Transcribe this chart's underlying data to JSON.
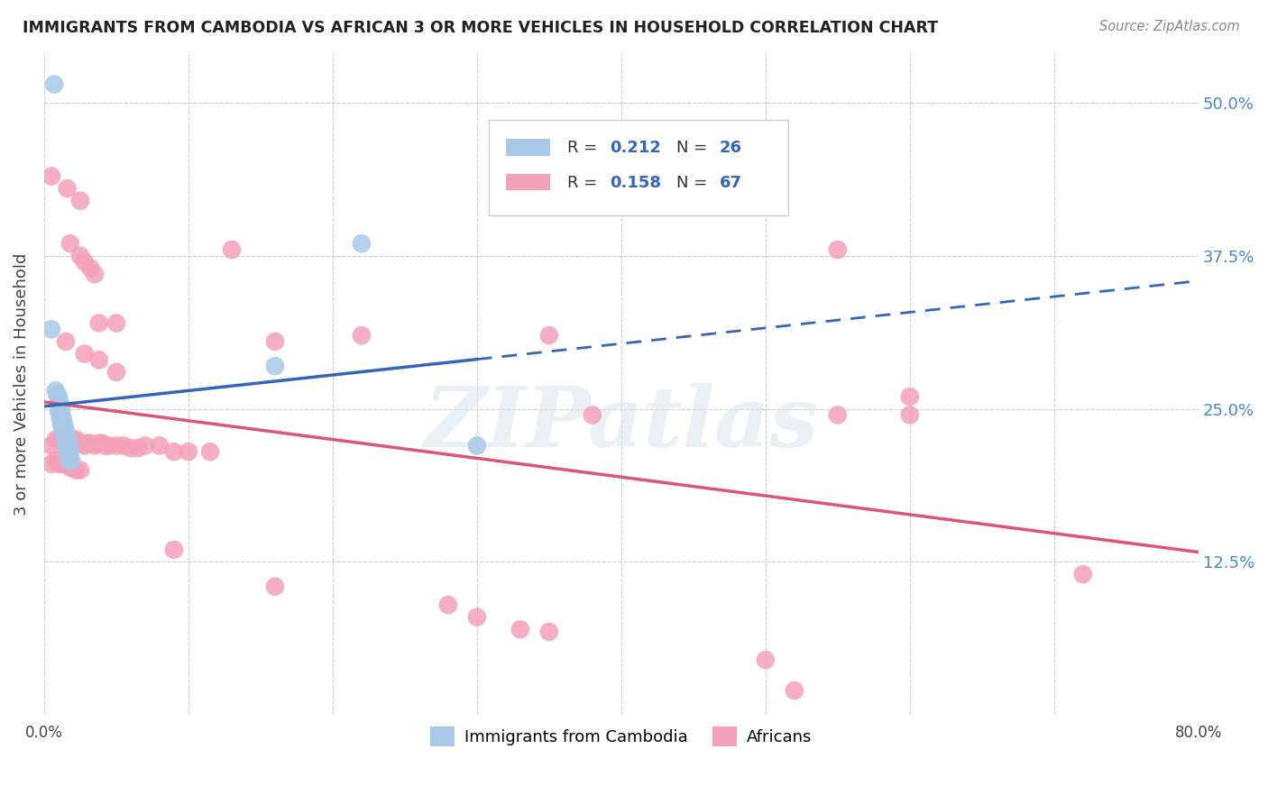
{
  "title": "IMMIGRANTS FROM CAMBODIA VS AFRICAN 3 OR MORE VEHICLES IN HOUSEHOLD CORRELATION CHART",
  "source": "Source: ZipAtlas.com",
  "ylabel": "3 or more Vehicles in Household",
  "xlim": [
    0.0,
    0.8
  ],
  "ylim": [
    0.0,
    0.54
  ],
  "xticks": [
    0.0,
    0.1,
    0.2,
    0.3,
    0.4,
    0.5,
    0.6,
    0.7,
    0.8
  ],
  "xticklabels": [
    "0.0%",
    "",
    "",
    "",
    "",
    "",
    "",
    "",
    "80.0%"
  ],
  "ytick_positions": [
    0.125,
    0.25,
    0.375,
    0.5
  ],
  "ytick_labels": [
    "12.5%",
    "25.0%",
    "37.5%",
    "50.0%"
  ],
  "grid_color": "#cccccc",
  "background_color": "#ffffff",
  "cambodia_color": "#a8c8e8",
  "african_color": "#f4a0b8",
  "cambodia_line_color": "#3366bb",
  "african_line_color": "#dd5577",
  "watermark": "ZIPatlas",
  "watermark_color": "#dce8f0",
  "cam_pts": [
    [
      0.007,
      0.515
    ],
    [
      0.005,
      0.315
    ],
    [
      0.008,
      0.265
    ],
    [
      0.009,
      0.262
    ],
    [
      0.01,
      0.26
    ],
    [
      0.01,
      0.255
    ],
    [
      0.011,
      0.255
    ],
    [
      0.01,
      0.248
    ],
    [
      0.012,
      0.248
    ],
    [
      0.011,
      0.242
    ],
    [
      0.013,
      0.242
    ],
    [
      0.012,
      0.237
    ],
    [
      0.014,
      0.237
    ],
    [
      0.013,
      0.232
    ],
    [
      0.015,
      0.232
    ],
    [
      0.014,
      0.227
    ],
    [
      0.016,
      0.227
    ],
    [
      0.015,
      0.222
    ],
    [
      0.017,
      0.222
    ],
    [
      0.016,
      0.215
    ],
    [
      0.018,
      0.215
    ],
    [
      0.017,
      0.208
    ],
    [
      0.019,
      0.208
    ],
    [
      0.16,
      0.285
    ],
    [
      0.22,
      0.385
    ],
    [
      0.3,
      0.22
    ]
  ],
  "afr_pts": [
    [
      0.005,
      0.44
    ],
    [
      0.016,
      0.43
    ],
    [
      0.025,
      0.42
    ],
    [
      0.018,
      0.385
    ],
    [
      0.025,
      0.375
    ],
    [
      0.028,
      0.37
    ],
    [
      0.032,
      0.365
    ],
    [
      0.035,
      0.36
    ],
    [
      0.038,
      0.32
    ],
    [
      0.05,
      0.32
    ],
    [
      0.015,
      0.305
    ],
    [
      0.028,
      0.295
    ],
    [
      0.038,
      0.29
    ],
    [
      0.05,
      0.28
    ],
    [
      0.13,
      0.38
    ],
    [
      0.55,
      0.38
    ],
    [
      0.16,
      0.305
    ],
    [
      0.22,
      0.31
    ],
    [
      0.35,
      0.31
    ],
    [
      0.38,
      0.245
    ],
    [
      0.55,
      0.245
    ],
    [
      0.6,
      0.245
    ],
    [
      0.6,
      0.26
    ],
    [
      0.005,
      0.22
    ],
    [
      0.008,
      0.225
    ],
    [
      0.01,
      0.225
    ],
    [
      0.012,
      0.228
    ],
    [
      0.014,
      0.228
    ],
    [
      0.016,
      0.225
    ],
    [
      0.018,
      0.222
    ],
    [
      0.02,
      0.225
    ],
    [
      0.022,
      0.225
    ],
    [
      0.024,
      0.222
    ],
    [
      0.026,
      0.222
    ],
    [
      0.028,
      0.22
    ],
    [
      0.03,
      0.222
    ],
    [
      0.032,
      0.222
    ],
    [
      0.035,
      0.22
    ],
    [
      0.038,
      0.222
    ],
    [
      0.04,
      0.222
    ],
    [
      0.042,
      0.22
    ],
    [
      0.045,
      0.22
    ],
    [
      0.05,
      0.22
    ],
    [
      0.055,
      0.22
    ],
    [
      0.06,
      0.218
    ],
    [
      0.065,
      0.218
    ],
    [
      0.07,
      0.22
    ],
    [
      0.08,
      0.22
    ],
    [
      0.09,
      0.215
    ],
    [
      0.1,
      0.215
    ],
    [
      0.115,
      0.215
    ],
    [
      0.005,
      0.205
    ],
    [
      0.008,
      0.208
    ],
    [
      0.01,
      0.205
    ],
    [
      0.012,
      0.205
    ],
    [
      0.014,
      0.205
    ],
    [
      0.016,
      0.205
    ],
    [
      0.018,
      0.202
    ],
    [
      0.02,
      0.202
    ],
    [
      0.022,
      0.2
    ],
    [
      0.025,
      0.2
    ],
    [
      0.09,
      0.135
    ],
    [
      0.16,
      0.105
    ],
    [
      0.28,
      0.09
    ],
    [
      0.3,
      0.08
    ],
    [
      0.33,
      0.07
    ],
    [
      0.35,
      0.068
    ],
    [
      0.5,
      0.045
    ],
    [
      0.52,
      0.02
    ],
    [
      0.72,
      0.115
    ]
  ]
}
